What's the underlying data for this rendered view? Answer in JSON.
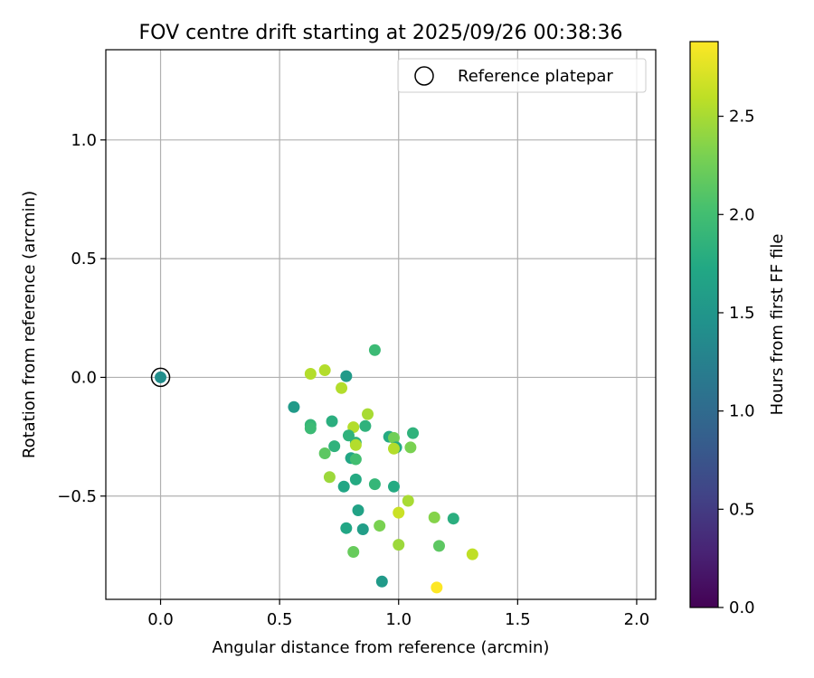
{
  "chart_data": {
    "type": "scatter",
    "title": "FOV centre drift starting at 2025/09/26 00:38:36",
    "xlabel": "Angular distance from reference (arcmin)",
    "ylabel": "Rotation from reference (arcmin)",
    "xlim": [
      -0.23,
      2.08
    ],
    "ylim": [
      -0.935,
      1.38
    ],
    "x_ticks": [
      0.0,
      0.5,
      1.0,
      1.5,
      2.0
    ],
    "x_tick_labels": [
      "0.0",
      "0.5",
      "1.0",
      "1.5",
      "2.0"
    ],
    "y_ticks": [
      -0.5,
      0.0,
      0.5,
      1.0
    ],
    "y_tick_labels": [
      "−0.5",
      "0.0",
      "0.5",
      "1.0"
    ],
    "grid": true,
    "legend": {
      "position": "top-right",
      "entries": [
        "Reference platepar"
      ]
    },
    "colorbar": {
      "label": "Hours from first FF file",
      "min": 0.0,
      "max": 2.88,
      "ticks": [
        0.0,
        0.5,
        1.0,
        1.5,
        2.0,
        2.5
      ],
      "tick_labels": [
        "0.0",
        "0.5",
        "1.0",
        "1.5",
        "2.0",
        "2.5"
      ],
      "colormap": "viridis"
    },
    "reference": {
      "x": 0.0,
      "y": 0.0,
      "hours": 1.4
    },
    "points": [
      {
        "x": 0.9,
        "y": 0.115,
        "hours": 1.95
      },
      {
        "x": 0.63,
        "y": 0.015,
        "hours": 2.55
      },
      {
        "x": 0.69,
        "y": 0.03,
        "hours": 2.55
      },
      {
        "x": 0.78,
        "y": 0.005,
        "hours": 1.55
      },
      {
        "x": 0.76,
        "y": -0.045,
        "hours": 2.55
      },
      {
        "x": 0.56,
        "y": -0.125,
        "hours": 1.55
      },
      {
        "x": 0.87,
        "y": -0.155,
        "hours": 2.5
      },
      {
        "x": 0.63,
        "y": -0.2,
        "hours": 1.9
      },
      {
        "x": 0.63,
        "y": -0.215,
        "hours": 1.95
      },
      {
        "x": 0.72,
        "y": -0.185,
        "hours": 1.8
      },
      {
        "x": 0.86,
        "y": -0.205,
        "hours": 1.85
      },
      {
        "x": 0.81,
        "y": -0.21,
        "hours": 2.55
      },
      {
        "x": 0.79,
        "y": -0.245,
        "hours": 1.85
      },
      {
        "x": 0.82,
        "y": -0.275,
        "hours": 1.85
      },
      {
        "x": 0.96,
        "y": -0.25,
        "hours": 1.75
      },
      {
        "x": 0.98,
        "y": -0.255,
        "hours": 2.25
      },
      {
        "x": 1.06,
        "y": -0.235,
        "hours": 1.85
      },
      {
        "x": 0.73,
        "y": -0.29,
        "hours": 1.85
      },
      {
        "x": 0.82,
        "y": -0.285,
        "hours": 2.55
      },
      {
        "x": 0.69,
        "y": -0.32,
        "hours": 2.15
      },
      {
        "x": 0.99,
        "y": -0.295,
        "hours": 1.75
      },
      {
        "x": 0.98,
        "y": -0.3,
        "hours": 2.55
      },
      {
        "x": 1.05,
        "y": -0.295,
        "hours": 2.3
      },
      {
        "x": 0.8,
        "y": -0.34,
        "hours": 1.7
      },
      {
        "x": 0.82,
        "y": -0.345,
        "hours": 2.0
      },
      {
        "x": 0.71,
        "y": -0.42,
        "hours": 2.45
      },
      {
        "x": 0.82,
        "y": -0.43,
        "hours": 1.75
      },
      {
        "x": 0.77,
        "y": -0.46,
        "hours": 1.7
      },
      {
        "x": 0.9,
        "y": -0.45,
        "hours": 1.9
      },
      {
        "x": 0.98,
        "y": -0.46,
        "hours": 1.75
      },
      {
        "x": 1.04,
        "y": -0.52,
        "hours": 2.5
      },
      {
        "x": 1.0,
        "y": -0.57,
        "hours": 2.65
      },
      {
        "x": 0.83,
        "y": -0.56,
        "hours": 1.65
      },
      {
        "x": 1.15,
        "y": -0.59,
        "hours": 2.35
      },
      {
        "x": 1.23,
        "y": -0.595,
        "hours": 1.8
      },
      {
        "x": 0.78,
        "y": -0.635,
        "hours": 1.7
      },
      {
        "x": 0.85,
        "y": -0.64,
        "hours": 1.6
      },
      {
        "x": 0.92,
        "y": -0.625,
        "hours": 2.3
      },
      {
        "x": 0.81,
        "y": -0.735,
        "hours": 2.2
      },
      {
        "x": 1.0,
        "y": -0.705,
        "hours": 2.45
      },
      {
        "x": 1.17,
        "y": -0.71,
        "hours": 2.15
      },
      {
        "x": 1.31,
        "y": -0.745,
        "hours": 2.6
      },
      {
        "x": 0.93,
        "y": -0.86,
        "hours": 1.55
      },
      {
        "x": 1.16,
        "y": -0.885,
        "hours": 2.88
      }
    ]
  }
}
